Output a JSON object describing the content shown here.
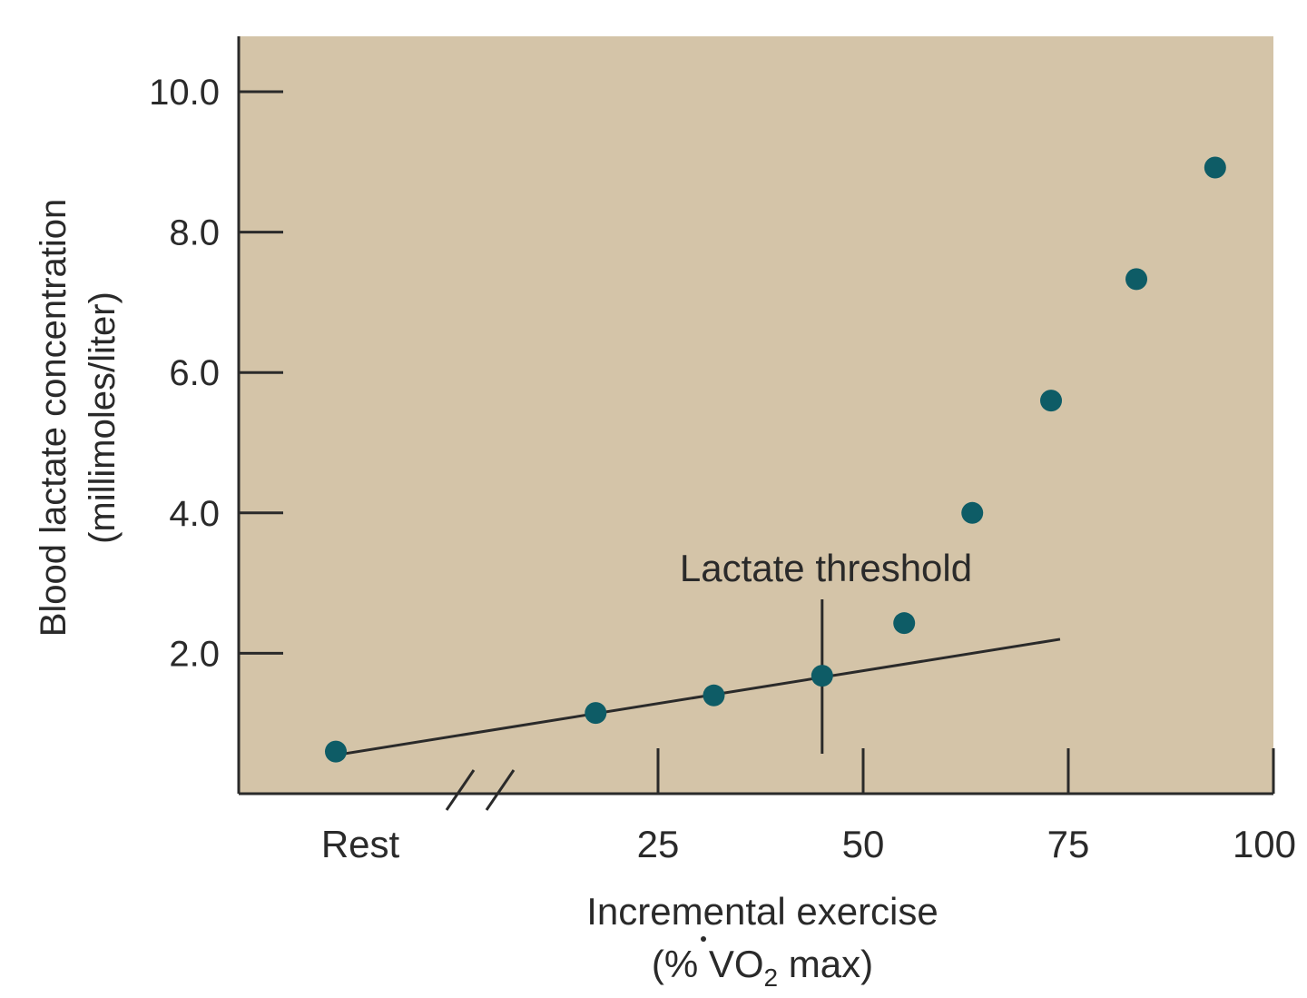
{
  "chart_data": {
    "type": "scatter",
    "title": "",
    "xlabel": "Incremental exercise",
    "xlabel_line2_prefix": "(% ",
    "xlabel_line2_v": "V",
    "xlabel_line2_o": "O",
    "xlabel_line2_sub": "2",
    "xlabel_line2_suffix": " max)",
    "ylabel": "Blood lactate concentration",
    "ylabel_line2": "(millimoles/liter)",
    "x_ticks": [
      "Rest",
      "25",
      "50",
      "75",
      "100"
    ],
    "y_ticks": [
      "2.0",
      "4.0",
      "6.0",
      "8.0",
      "10.0"
    ],
    "ylim": [
      0,
      10.8
    ],
    "xlim": [
      "Rest",
      100
    ],
    "x_axis_break": true,
    "grid": false,
    "background_color": "#d4c4a8",
    "point_color": "#0e5c66",
    "points": [
      {
        "x": "Rest",
        "y": 0.6
      },
      {
        "x": 17.4,
        "y": 1.15
      },
      {
        "x": 31.8,
        "y": 1.4
      },
      {
        "x": 45,
        "y": 1.68
      },
      {
        "x": 55,
        "y": 2.43
      },
      {
        "x": 63.3,
        "y": 4.0
      },
      {
        "x": 72.9,
        "y": 5.6
      },
      {
        "x": 83.3,
        "y": 7.33
      },
      {
        "x": 92.9,
        "y": 8.92
      }
    ],
    "trend_line": {
      "from": {
        "x": "Rest",
        "y": 0.55
      },
      "to": {
        "x": 74,
        "y": 2.2
      }
    },
    "annotation": {
      "label": "Lactate threshold",
      "x": 45
    }
  }
}
